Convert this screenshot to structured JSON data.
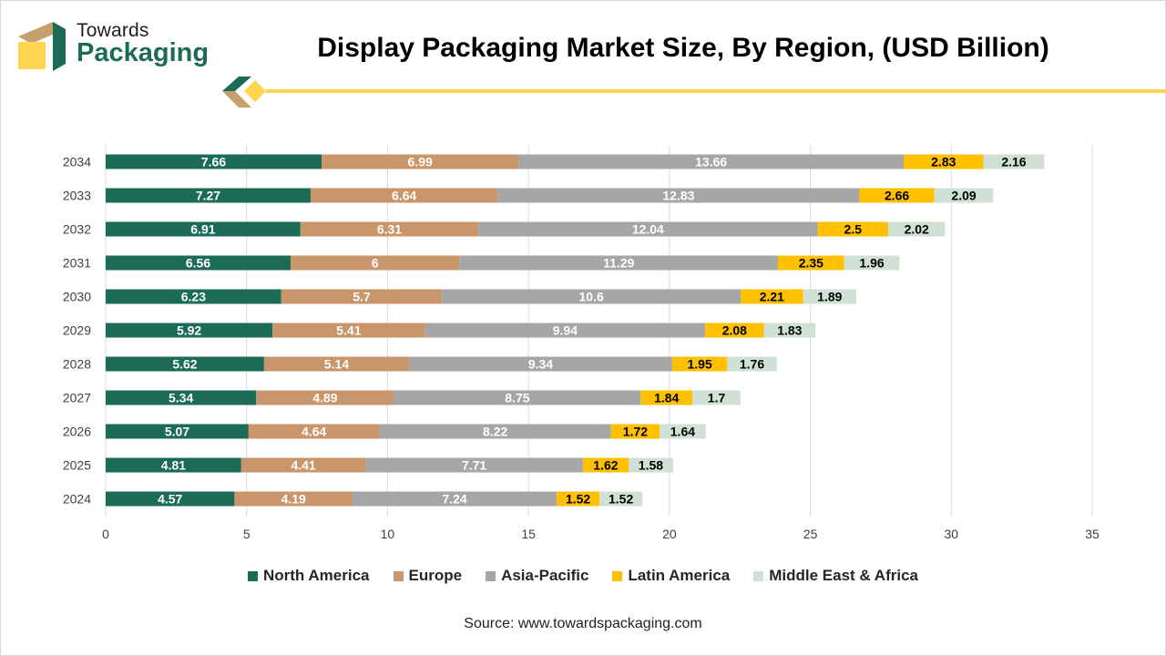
{
  "brand": {
    "line1": "Towards",
    "line2": "Packaging"
  },
  "colors": {
    "brand_green": "#1b6b57",
    "brand_tan": "#c8a06e",
    "brand_yellow": "#ffd54f"
  },
  "chart_data": {
    "type": "bar",
    "orientation": "horizontal",
    "stacked": true,
    "title": "Display Packaging Market Size, By Region, (USD Billion)",
    "categories": [
      "2034",
      "2033",
      "2032",
      "2031",
      "2030",
      "2029",
      "2028",
      "2027",
      "2026",
      "2025",
      "2024"
    ],
    "series": [
      {
        "name": "North America",
        "color": "#1b6b57",
        "label_color": "#ffffff",
        "values": [
          7.66,
          7.27,
          6.91,
          6.56,
          6.23,
          5.92,
          5.62,
          5.34,
          5.07,
          4.81,
          4.57
        ]
      },
      {
        "name": "Europe",
        "color": "#c8966a",
        "label_color": "#ffffff",
        "values": [
          6.99,
          6.64,
          6.31,
          6,
          5.7,
          5.41,
          5.14,
          4.89,
          4.64,
          4.41,
          4.19
        ]
      },
      {
        "name": "Asia-Pacific",
        "color": "#a6a6a6",
        "label_color": "#ffffff",
        "values": [
          13.66,
          12.83,
          12.04,
          11.29,
          10.6,
          9.94,
          9.34,
          8.75,
          8.22,
          7.71,
          7.24
        ]
      },
      {
        "name": "Latin America",
        "color": "#ffc000",
        "label_color": "#000000",
        "values": [
          2.83,
          2.66,
          2.5,
          2.35,
          2.21,
          2.08,
          1.95,
          1.84,
          1.72,
          1.62,
          1.52
        ]
      },
      {
        "name": "Middle East & Africa",
        "color": "#cfe0d4",
        "label_color": "#000000",
        "values": [
          2.16,
          2.09,
          2.02,
          1.96,
          1.89,
          1.83,
          1.76,
          1.7,
          1.64,
          1.58,
          1.52
        ]
      }
    ],
    "xlim": [
      0,
      35
    ],
    "xticks": [
      0,
      5,
      10,
      15,
      20,
      25,
      30,
      35
    ],
    "xlabel": "",
    "ylabel": "",
    "grid": "vertical",
    "legend_position": "bottom"
  },
  "source": "Source: www.towardspackaging.com"
}
